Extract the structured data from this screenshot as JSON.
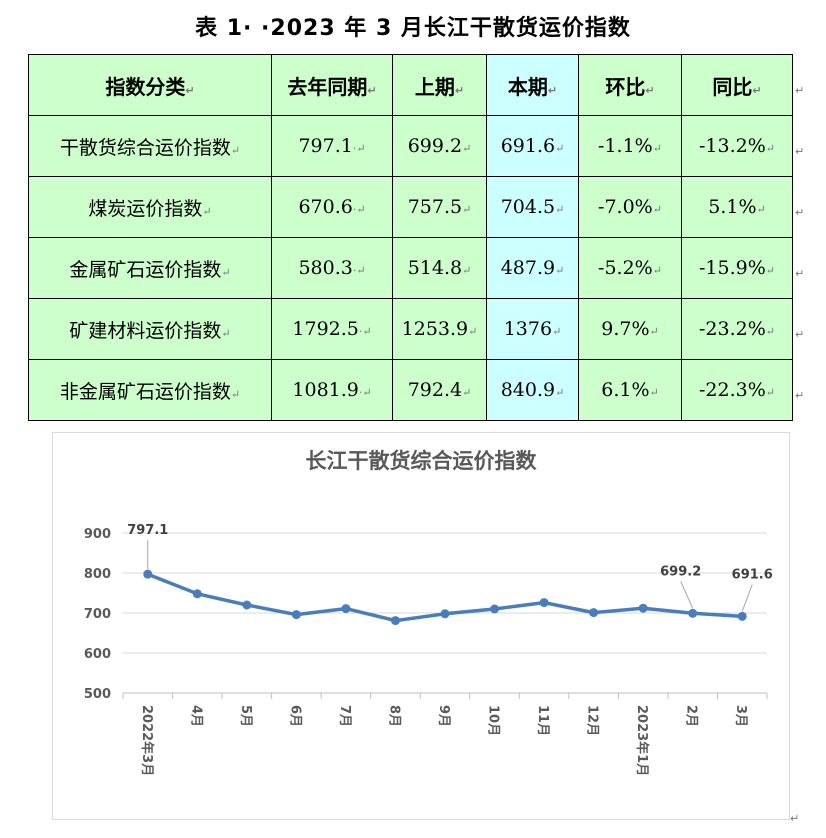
{
  "title": "表 1· ·2023 年 3 月长江干散货运价指数",
  "table": {
    "headers": [
      "指数分类",
      "去年同期",
      "上期",
      "本期",
      "环比",
      "同比"
    ],
    "rows": [
      [
        "干散货综合运价指数",
        "797.1",
        "699.2",
        "691.6",
        "-1.1%",
        "-13.2%"
      ],
      [
        "煤炭运价指数",
        "670.6",
        "757.5",
        "704.5",
        "-7.0%",
        "5.1%"
      ],
      [
        "金属矿石运价指数",
        "580.3",
        "514.8",
        "487.9",
        "-5.2%",
        "-15.9%"
      ],
      [
        "矿建材料运价指数",
        "1792.5",
        "1253.9",
        "1376",
        "9.7%",
        "-23.2%"
      ],
      [
        "非金属矿石运价指数",
        "1081.9",
        "792.4",
        "840.9",
        "6.1%",
        "-22.3%"
      ]
    ]
  },
  "chart_data": {
    "type": "line",
    "title": "长江干散货综合运价指数",
    "categories": [
      "2022年3月",
      "4月",
      "5月",
      "6月",
      "7月",
      "8月",
      "9月",
      "10月",
      "11月",
      "12月",
      "2023年1月",
      "2月",
      "3月"
    ],
    "series": [
      {
        "values": [
          797.1,
          748,
          720,
          696,
          711,
          681,
          698,
          710,
          726,
          701,
          712,
          699.2,
          691.6
        ]
      }
    ],
    "data_labels": [
      {
        "index": 0,
        "text": "797.1"
      },
      {
        "index": 11,
        "text": "699.2"
      },
      {
        "index": 12,
        "text": "691.6"
      }
    ],
    "yticks": [
      "900",
      "800",
      "700",
      "600",
      "500"
    ],
    "ylim": [
      500,
      900
    ],
    "grid": true,
    "line_color": "#4a7ebb"
  }
}
